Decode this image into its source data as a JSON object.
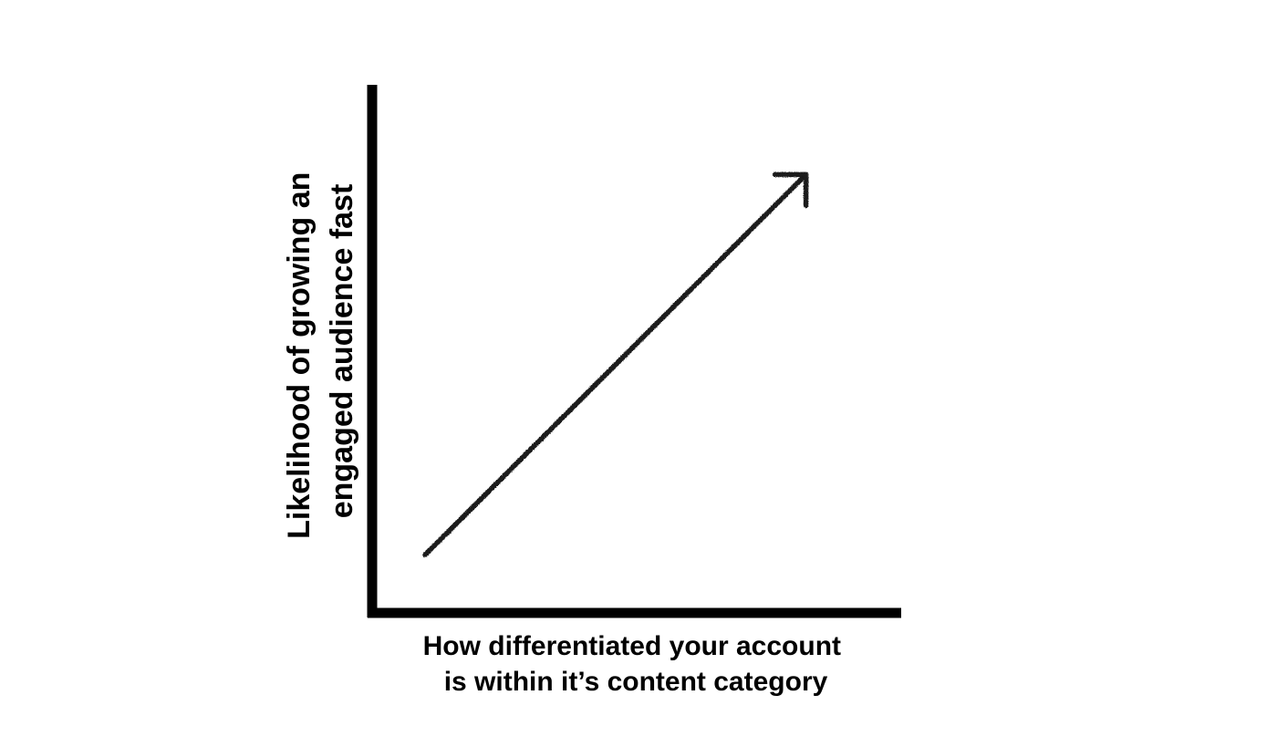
{
  "chart_data": {
    "type": "line",
    "title": "",
    "xlabel": [
      "How differentiated your account",
      "is within it’s content category"
    ],
    "ylabel": [
      "Likelihood of growing an",
      "engaged audience fast"
    ],
    "series": [
      {
        "x": [
          0.1,
          0.82
        ],
        "y": [
          0.11,
          0.83
        ],
        "marker_end": "arrow"
      }
    ],
    "xlim": [
      0,
      1
    ],
    "ylim": [
      0,
      1
    ],
    "grid": false,
    "legend": "none",
    "ticks": "none"
  },
  "colors": {
    "axis": "#000000",
    "trend": "#1a1a1a",
    "text": "#000000",
    "background": "#ffffff"
  }
}
